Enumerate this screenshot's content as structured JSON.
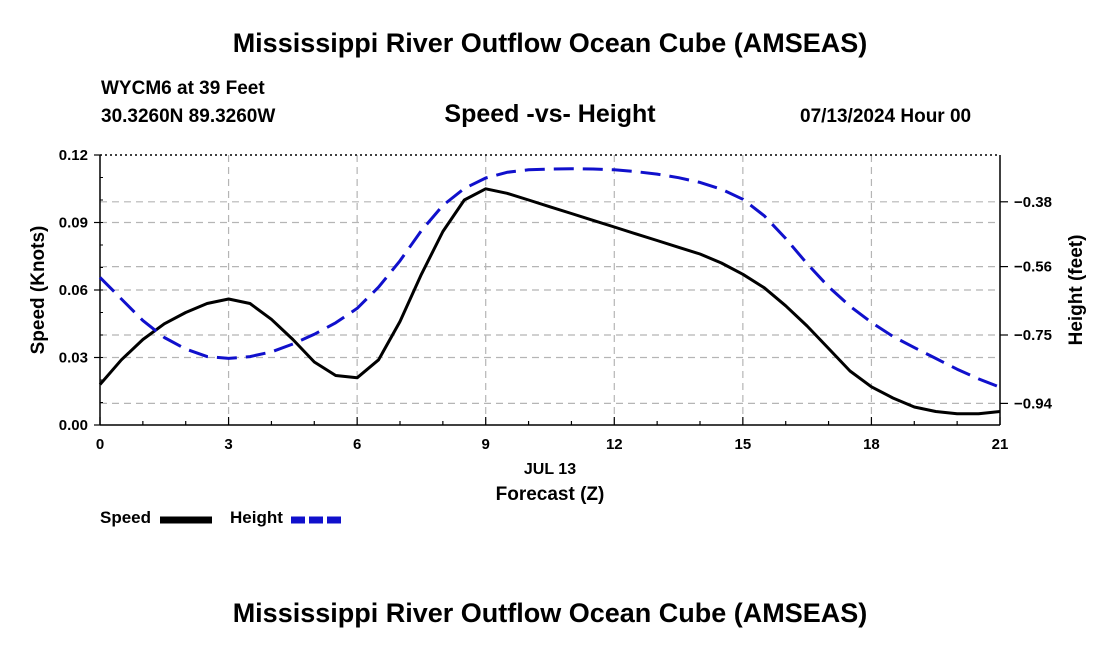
{
  "header": {
    "title": "Mississippi River Outflow Ocean Cube (AMSEAS)",
    "station": "WYCM6 at 39 Feet",
    "coordinates": "30.3260N  89.3260W",
    "subtitle": "Speed -vs- Height",
    "datetime": "07/13/2024 Hour 00"
  },
  "footer": {
    "title": "Mississippi River Outflow Ocean Cube (AMSEAS)"
  },
  "chart_data": {
    "type": "line",
    "xlabel": "Forecast (Z)",
    "date_label": "JUL 13",
    "ylabel_left": "Speed (Knots)",
    "ylabel_right": "Height (feet)",
    "xlim": [
      0,
      21
    ],
    "x_ticks": [
      0,
      3,
      6,
      9,
      12,
      15,
      18,
      21
    ],
    "x_tick_labels": [
      "0",
      "3",
      "6",
      "9",
      "12",
      "15",
      "18",
      "21"
    ],
    "ylim_left": [
      0,
      0.12
    ],
    "y_left_ticks": [
      0,
      0.03,
      0.06,
      0.09,
      0.12
    ],
    "y_left_tick_labels": [
      "0.00",
      "0.03",
      "0.06",
      "0.09",
      "0.12"
    ],
    "ylim_right": [
      -1.0,
      -0.25
    ],
    "y_right_ticks": [
      -0.94,
      -0.75,
      -0.56,
      -0.38
    ],
    "y_right_tick_labels": [
      "−0.94",
      "−0.75",
      "−0.56",
      "−0.38"
    ],
    "grid": true,
    "legend": "bottom-left",
    "series": [
      {
        "name": "Speed",
        "axis": "left",
        "color": "#000000",
        "dash": "solid",
        "x": [
          0,
          0.5,
          1,
          1.5,
          2,
          2.5,
          3,
          3.5,
          4,
          4.5,
          5,
          5.5,
          6,
          6.5,
          7,
          7.5,
          8,
          8.5,
          9,
          9.5,
          10,
          10.5,
          11,
          11.5,
          12,
          12.5,
          13,
          13.5,
          14,
          14.5,
          15,
          15.5,
          16,
          16.5,
          17,
          17.5,
          18,
          18.5,
          19,
          19.5,
          20,
          20.5,
          21
        ],
        "values": [
          0.018,
          0.029,
          0.038,
          0.045,
          0.05,
          0.054,
          0.056,
          0.054,
          0.047,
          0.038,
          0.028,
          0.022,
          0.021,
          0.029,
          0.046,
          0.067,
          0.086,
          0.1,
          0.105,
          0.103,
          0.1,
          0.097,
          0.094,
          0.091,
          0.088,
          0.085,
          0.082,
          0.079,
          0.076,
          0.072,
          0.067,
          0.061,
          0.053,
          0.044,
          0.034,
          0.024,
          0.017,
          0.012,
          0.008,
          0.006,
          0.005,
          0.005,
          0.006
        ]
      },
      {
        "name": "Height",
        "axis": "right",
        "color": "#1010cc",
        "dash": "dashed",
        "x": [
          0,
          0.5,
          1,
          1.5,
          2,
          2.5,
          3,
          3.5,
          4,
          4.5,
          5,
          5.5,
          6,
          6.5,
          7,
          7.5,
          8,
          8.5,
          9,
          9.5,
          10,
          10.5,
          11,
          11.5,
          12,
          12.5,
          13,
          13.5,
          14,
          14.5,
          15,
          15.5,
          16,
          16.5,
          17,
          17.5,
          18,
          18.5,
          19,
          19.5,
          20,
          20.5,
          21
        ],
        "values": [
          -0.59,
          -0.65,
          -0.71,
          -0.757,
          -0.789,
          -0.81,
          -0.815,
          -0.81,
          -0.797,
          -0.775,
          -0.748,
          -0.716,
          -0.676,
          -0.617,
          -0.544,
          -0.46,
          -0.39,
          -0.343,
          -0.314,
          -0.298,
          -0.291,
          -0.289,
          -0.288,
          -0.289,
          -0.291,
          -0.296,
          -0.303,
          -0.313,
          -0.326,
          -0.345,
          -0.373,
          -0.419,
          -0.482,
          -0.552,
          -0.616,
          -0.67,
          -0.715,
          -0.754,
          -0.785,
          -0.815,
          -0.845,
          -0.872,
          -0.895
        ]
      }
    ]
  }
}
